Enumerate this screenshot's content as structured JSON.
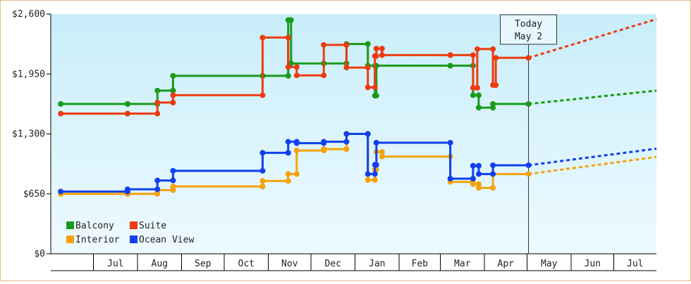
{
  "chart_data": {
    "type": "line",
    "y_ticks": [
      "$0",
      "$650",
      "$1,300",
      "$1,950",
      "$2,600"
    ],
    "ylim": [
      0,
      2600
    ],
    "month_labels": [
      "Jul",
      "Aug",
      "Sep",
      "Oct",
      "Nov",
      "Dec",
      "Jan",
      "Feb",
      "Mar",
      "Apr",
      "May",
      "Jun",
      "Jul"
    ],
    "today": {
      "line1": "Today",
      "line2": "May 2",
      "date": "2024-05-02"
    },
    "grid": false,
    "legend_position": "bottom-left",
    "colors": {
      "balcony": "#1a9a1a",
      "suite": "#ee3b10",
      "interior": "#f5a20a",
      "ocean_view": "#1040ee",
      "bg_top": "#c8eefa",
      "bg_bottom": "#eefaff"
    },
    "series": [
      {
        "name": "Balcony",
        "color": "#1a9a1a",
        "x": [
          "2023-06-08",
          "2023-07-25",
          "2023-08-15",
          "2023-08-26",
          "2023-10-28",
          "2023-11-15",
          "2023-11-17",
          "2023-12-10",
          "2023-12-26",
          "2024-01-10",
          "2024-01-15",
          "2024-01-16",
          "2024-03-08",
          "2024-03-24",
          "2024-03-28",
          "2024-04-07"
        ],
        "values": [
          1625,
          1625,
          1770,
          1930,
          1930,
          2535,
          2065,
          2065,
          2275,
          2040,
          1715,
          2040,
          2040,
          1720,
          1585,
          1625
        ],
        "forecast": {
          "x": [
            "2024-05-02",
            "2024-07-31"
          ],
          "values": [
            1625,
            1770
          ]
        }
      },
      {
        "name": "Suite",
        "color": "#ee3b10",
        "x": [
          "2023-06-08",
          "2023-07-25",
          "2023-08-15",
          "2023-08-26",
          "2023-10-28",
          "2023-11-15",
          "2023-11-21",
          "2023-12-10",
          "2023-12-26",
          "2024-01-10",
          "2024-01-15",
          "2024-01-16",
          "2024-01-20",
          "2024-03-08",
          "2024-03-24",
          "2024-03-27",
          "2024-04-07",
          "2024-04-09"
        ],
        "values": [
          1520,
          1520,
          1640,
          1720,
          2345,
          2025,
          1935,
          2265,
          2020,
          1805,
          2145,
          2225,
          2155,
          2155,
          1800,
          2220,
          1830,
          2125
        ],
        "forecast": {
          "x": [
            "2024-05-02",
            "2024-07-31"
          ],
          "values": [
            2125,
            2545
          ]
        }
      },
      {
        "name": "Interior",
        "color": "#f5a20a",
        "x": [
          "2023-06-08",
          "2023-07-25",
          "2023-08-15",
          "2023-08-26",
          "2023-10-28",
          "2023-11-15",
          "2023-11-21",
          "2023-12-10",
          "2023-12-26",
          "2024-01-10",
          "2024-01-15",
          "2024-01-16",
          "2024-01-20",
          "2024-03-08",
          "2024-03-24",
          "2024-03-28",
          "2024-04-07"
        ],
        "values": [
          650,
          650,
          690,
          730,
          790,
          865,
          1120,
          1135,
          1300,
          800,
          915,
          1105,
          1055,
          780,
          755,
          715,
          865
        ],
        "forecast": {
          "x": [
            "2024-05-02",
            "2024-07-31"
          ],
          "values": [
            865,
            1050
          ]
        }
      },
      {
        "name": "Ocean View",
        "color": "#1040ee",
        "x": [
          "2023-06-08",
          "2023-07-25",
          "2023-08-15",
          "2023-08-26",
          "2023-10-28",
          "2023-11-15",
          "2023-11-21",
          "2023-12-10",
          "2023-12-26",
          "2024-01-10",
          "2024-01-15",
          "2024-01-16",
          "2024-03-08",
          "2024-03-24",
          "2024-03-28",
          "2024-04-07"
        ],
        "values": [
          675,
          700,
          795,
          900,
          1095,
          1215,
          1200,
          1215,
          1300,
          865,
          965,
          1205,
          815,
          955,
          865,
          960
        ],
        "forecast": {
          "x": [
            "2024-05-02",
            "2024-07-31"
          ],
          "values": [
            960,
            1140
          ]
        }
      }
    ]
  }
}
